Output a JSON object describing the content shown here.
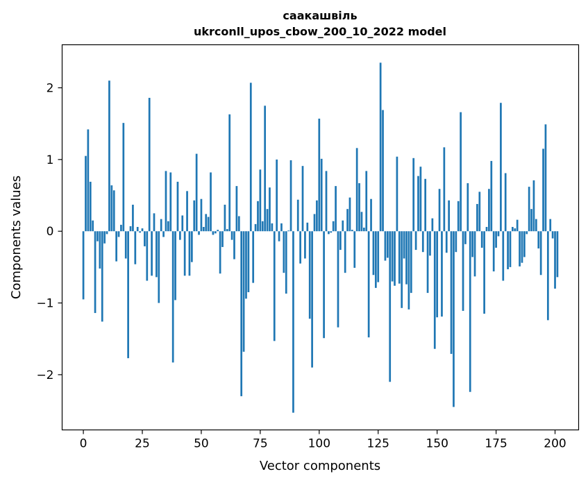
{
  "chart_data": {
    "type": "bar",
    "title": "саакашвіль",
    "subtitle": "ukrconll_upos_cbow_200_10_2022 model",
    "xlabel": "Vector components",
    "ylabel": "Components values",
    "xlim": [
      -9,
      210
    ],
    "ylim": [
      -2.77,
      2.6
    ],
    "xticks": [
      0,
      25,
      50,
      75,
      100,
      125,
      150,
      175,
      200
    ],
    "yticks": [
      -2,
      -1,
      0,
      1,
      2
    ],
    "ytick_labels": [
      "−2",
      "−1",
      "0",
      "1",
      "2"
    ],
    "grid": false,
    "bar_color": "#1f77b4",
    "values": [
      -0.95,
      1.05,
      1.42,
      0.69,
      0.15,
      -1.14,
      -0.14,
      -0.52,
      -1.26,
      -0.17,
      -0.04,
      2.1,
      0.64,
      0.57,
      -0.42,
      -0.08,
      0.09,
      1.51,
      -0.38,
      -1.77,
      0.07,
      0.37,
      -0.46,
      0.06,
      -0.02,
      0.04,
      -0.21,
      -0.69,
      1.86,
      -0.62,
      0.25,
      -0.64,
      -1.0,
      0.17,
      -0.08,
      0.84,
      0.14,
      0.82,
      -1.83,
      -0.96,
      0.69,
      -0.12,
      0.22,
      -0.62,
      0.56,
      -0.62,
      -0.43,
      0.43,
      1.08,
      -0.05,
      0.45,
      0.06,
      0.24,
      0.2,
      0.82,
      -0.05,
      -0.03,
      0.02,
      -0.59,
      -0.22,
      0.37,
      0.03,
      1.63,
      -0.12,
      -0.39,
      0.63,
      0.21,
      -2.3,
      -1.68,
      -0.94,
      -0.85,
      2.07,
      -0.72,
      0.1,
      0.42,
      0.86,
      0.14,
      1.75,
      0.31,
      0.61,
      0.11,
      -1.53,
      1.0,
      -0.14,
      0.11,
      -0.58,
      -0.87,
      0.01,
      0.99,
      -2.53,
      0.0,
      0.44,
      -0.45,
      0.91,
      -0.38,
      0.12,
      -1.22,
      -1.9,
      0.24,
      0.43,
      1.57,
      1.01,
      -1.49,
      0.84,
      -0.04,
      -0.02,
      0.14,
      0.63,
      -1.34,
      -0.26,
      0.15,
      -0.58,
      0.31,
      0.47,
      0.02,
      -0.51,
      1.16,
      0.67,
      0.27,
      0.05,
      0.84,
      -1.48,
      0.45,
      -0.61,
      -0.79,
      -0.71,
      2.35,
      1.69,
      -0.41,
      -0.37,
      -2.1,
      -0.7,
      -0.76,
      1.04,
      -0.73,
      -1.07,
      -0.38,
      -0.74,
      -1.09,
      -0.86,
      1.02,
      -0.26,
      0.77,
      0.9,
      -0.29,
      0.73,
      -0.86,
      -0.34,
      0.18,
      -1.64,
      -1.2,
      0.59,
      -1.19,
      1.17,
      -0.3,
      0.43,
      -1.71,
      -2.45,
      -0.29,
      0.42,
      1.66,
      -1.11,
      -0.18,
      0.67,
      -2.24,
      -0.36,
      -0.63,
      0.38,
      0.55,
      -0.23,
      -1.15,
      0.06,
      0.59,
      0.98,
      -0.56,
      -0.23,
      -0.07,
      1.79,
      -0.69,
      0.81,
      -0.53,
      -0.5,
      0.06,
      0.04,
      0.16,
      -0.49,
      -0.44,
      -0.36,
      -0.04,
      0.62,
      0.31,
      0.71,
      0.17,
      -0.24,
      -0.61,
      1.15,
      1.49,
      -1.24,
      0.17,
      -0.1,
      -0.8,
      -0.64
    ]
  }
}
